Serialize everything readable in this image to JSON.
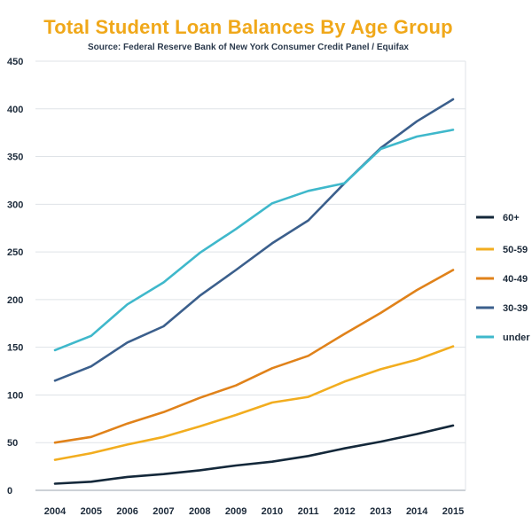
{
  "chart_data": {
    "type": "line",
    "title": "Total Student Loan Balances By Age Group",
    "subtitle": "Source: Federal Reserve Bank of New York Consumer Credit Panel / Equifax",
    "xlabel": "",
    "ylabel": "",
    "x": [
      "2004",
      "2005",
      "2006",
      "2007",
      "2008",
      "2009",
      "2010",
      "2011",
      "2012",
      "2013",
      "2014",
      "2015"
    ],
    "ylim": [
      0,
      450
    ],
    "yticks": [
      0,
      50,
      100,
      150,
      200,
      250,
      300,
      350,
      400,
      450
    ],
    "grid": "horizontal",
    "legend_position": "right",
    "series": [
      {
        "name": "60+",
        "color": "#14283a",
        "values": [
          7,
          9,
          14,
          17,
          21,
          26,
          30,
          36,
          44,
          51,
          59,
          68
        ]
      },
      {
        "name": "50-59",
        "color": "#f2ad1f",
        "values": [
          32,
          39,
          48,
          56,
          67,
          79,
          92,
          98,
          114,
          127,
          137,
          151
        ]
      },
      {
        "name": "40-49",
        "color": "#e0821a",
        "values": [
          50,
          56,
          70,
          82,
          97,
          110,
          128,
          141,
          164,
          186,
          210,
          231
        ]
      },
      {
        "name": "30-39",
        "color": "#3b5f8c",
        "values": [
          115,
          130,
          155,
          172,
          204,
          231,
          259,
          283,
          322,
          359,
          387,
          410
        ]
      },
      {
        "name": "under",
        "color": "#3fb8cb",
        "values": [
          147,
          162,
          195,
          218,
          249,
          274,
          301,
          314,
          322,
          358,
          371,
          378
        ]
      }
    ]
  }
}
